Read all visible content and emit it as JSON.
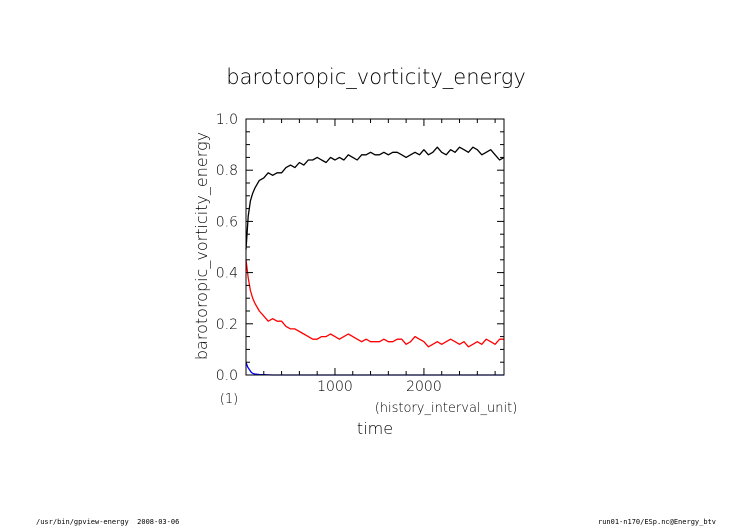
{
  "chart_data": {
    "type": "line",
    "title": "barotoropic_vorticity_energy",
    "ylabel": "barotoropic_vorticity_energy",
    "yunit": "(1)",
    "xlabel": "time",
    "xunit": "(history_interval_unit)",
    "xlim": [
      0,
      2900
    ],
    "ylim": [
      0.0,
      1.0
    ],
    "xticks": [
      1000,
      2000
    ],
    "yticks": [
      "0.0",
      "0.2",
      "0.4",
      "0.6",
      "0.8",
      "1.0"
    ],
    "grid": false,
    "series": [
      {
        "color": "#000000",
        "x": [
          0,
          25,
          50,
          75,
          100,
          150,
          200,
          250,
          300,
          350,
          400,
          450,
          500,
          550,
          600,
          650,
          700,
          750,
          800,
          850,
          900,
          950,
          1000,
          1050,
          1100,
          1150,
          1200,
          1250,
          1300,
          1350,
          1400,
          1450,
          1500,
          1550,
          1600,
          1650,
          1700,
          1750,
          1800,
          1850,
          1900,
          1950,
          2000,
          2050,
          2100,
          2150,
          2200,
          2250,
          2300,
          2350,
          2400,
          2450,
          2500,
          2550,
          2600,
          2650,
          2700,
          2750,
          2800,
          2850,
          2900
        ],
        "y": [
          0.49,
          0.62,
          0.68,
          0.71,
          0.73,
          0.76,
          0.77,
          0.79,
          0.78,
          0.79,
          0.79,
          0.81,
          0.82,
          0.81,
          0.83,
          0.82,
          0.84,
          0.84,
          0.85,
          0.84,
          0.83,
          0.85,
          0.84,
          0.85,
          0.84,
          0.86,
          0.85,
          0.84,
          0.86,
          0.86,
          0.87,
          0.86,
          0.86,
          0.87,
          0.86,
          0.87,
          0.87,
          0.86,
          0.85,
          0.86,
          0.87,
          0.86,
          0.88,
          0.86,
          0.87,
          0.89,
          0.87,
          0.86,
          0.88,
          0.87,
          0.89,
          0.88,
          0.87,
          0.89,
          0.88,
          0.86,
          0.87,
          0.88,
          0.86,
          0.84,
          0.85
        ]
      },
      {
        "color": "#ff0000",
        "x": [
          0,
          25,
          50,
          75,
          100,
          150,
          200,
          250,
          300,
          350,
          400,
          450,
          500,
          550,
          600,
          650,
          700,
          750,
          800,
          850,
          900,
          950,
          1000,
          1050,
          1100,
          1150,
          1200,
          1250,
          1300,
          1350,
          1400,
          1450,
          1500,
          1550,
          1600,
          1650,
          1700,
          1750,
          1800,
          1850,
          1900,
          1950,
          2000,
          2050,
          2100,
          2150,
          2200,
          2250,
          2300,
          2350,
          2400,
          2450,
          2500,
          2550,
          2600,
          2650,
          2700,
          2750,
          2800,
          2850,
          2900
        ],
        "y": [
          0.45,
          0.38,
          0.33,
          0.3,
          0.28,
          0.25,
          0.23,
          0.21,
          0.22,
          0.21,
          0.21,
          0.19,
          0.18,
          0.18,
          0.17,
          0.16,
          0.15,
          0.14,
          0.14,
          0.15,
          0.15,
          0.16,
          0.15,
          0.14,
          0.15,
          0.16,
          0.15,
          0.14,
          0.13,
          0.14,
          0.13,
          0.13,
          0.13,
          0.14,
          0.13,
          0.13,
          0.14,
          0.14,
          0.12,
          0.13,
          0.15,
          0.14,
          0.13,
          0.11,
          0.12,
          0.13,
          0.12,
          0.13,
          0.14,
          0.13,
          0.12,
          0.13,
          0.11,
          0.12,
          0.13,
          0.12,
          0.14,
          0.13,
          0.12,
          0.14,
          0.14
        ]
      },
      {
        "color": "#0000ff",
        "x": [
          0,
          20,
          40,
          60,
          80,
          100,
          150,
          200,
          300,
          500,
          1000,
          1500,
          2000,
          2500,
          2900
        ],
        "y": [
          0.05,
          0.03,
          0.02,
          0.01,
          0.006,
          0.004,
          0.002,
          0.001,
          0.0,
          0.0,
          0.0,
          0.0,
          0.0,
          0.0,
          0.0
        ]
      }
    ]
  },
  "footer": {
    "left": "/usr/bin/gpview-energy  2008-03-06",
    "right": "run01-n170/ESp.nc@Energy_btv"
  }
}
